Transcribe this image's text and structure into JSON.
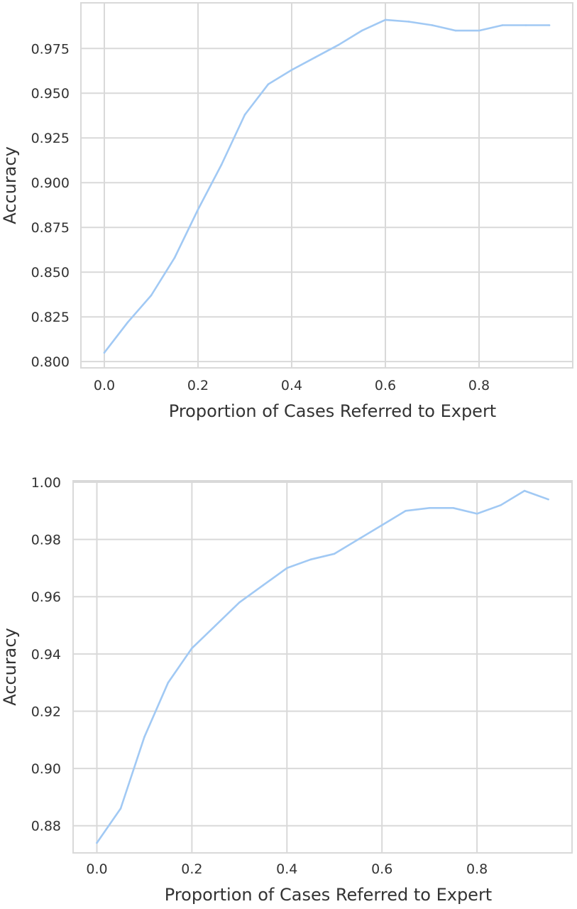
{
  "figure": {
    "background": "#ffffff",
    "line_color": "#a1c9f4",
    "grid_color": "#d9d9d9",
    "text_color": "#333333"
  },
  "chart_data": [
    {
      "type": "line",
      "title": "",
      "xlabel": "Proportion of Cases Referred to Expert",
      "ylabel": "Accuracy",
      "xlim": [
        -0.05,
        1.0
      ],
      "ylim": [
        0.7965,
        1.0005
      ],
      "grid": true,
      "legend": "none",
      "x_ticks": [
        0.0,
        0.2,
        0.4,
        0.6,
        0.8
      ],
      "x_tick_labels": [
        "0.0",
        "0.2",
        "0.4",
        "0.6",
        "0.8"
      ],
      "y_ticks": [
        0.8,
        0.825,
        0.85,
        0.875,
        0.9,
        0.925,
        0.95,
        0.975
      ],
      "y_tick_labels": [
        "0.800",
        "0.825",
        "0.850",
        "0.875",
        "0.900",
        "0.925",
        "0.950",
        "0.975"
      ],
      "series": [
        {
          "x": [
            0.0,
            0.05,
            0.1,
            0.15,
            0.2,
            0.25,
            0.3,
            0.35,
            0.4,
            0.45,
            0.5,
            0.55,
            0.6,
            0.65,
            0.7,
            0.75,
            0.8,
            0.85,
            0.9,
            0.95
          ],
          "y": [
            0.805,
            0.822,
            0.837,
            0.858,
            0.885,
            0.91,
            0.938,
            0.955,
            0.963,
            0.97,
            0.977,
            0.985,
            0.991,
            0.99,
            0.988,
            0.985,
            0.985,
            0.988,
            0.988,
            0.988
          ]
        }
      ]
    },
    {
      "type": "line",
      "title": "",
      "xlabel": "Proportion of Cases Referred to Expert",
      "ylabel": "Accuracy",
      "xlim": [
        -0.05,
        1.0
      ],
      "ylim": [
        0.8705,
        1.0005
      ],
      "grid": true,
      "legend": "none",
      "x_ticks": [
        0.0,
        0.2,
        0.4,
        0.6,
        0.8
      ],
      "x_tick_labels": [
        "0.0",
        "0.2",
        "0.4",
        "0.6",
        "0.8"
      ],
      "y_ticks": [
        0.88,
        0.9,
        0.92,
        0.94,
        0.96,
        0.98,
        1.0
      ],
      "y_tick_labels": [
        "0.88",
        "0.90",
        "0.92",
        "0.94",
        "0.96",
        "0.98",
        "1.00"
      ],
      "series": [
        {
          "x": [
            0.0,
            0.05,
            0.1,
            0.15,
            0.2,
            0.25,
            0.3,
            0.35,
            0.4,
            0.45,
            0.5,
            0.55,
            0.6,
            0.65,
            0.7,
            0.75,
            0.8,
            0.85,
            0.9,
            0.95
          ],
          "y": [
            0.874,
            0.886,
            0.911,
            0.93,
            0.942,
            0.95,
            0.958,
            0.964,
            0.97,
            0.973,
            0.975,
            0.98,
            0.985,
            0.99,
            0.991,
            0.991,
            0.989,
            0.992,
            0.997,
            0.994
          ]
        }
      ]
    }
  ]
}
